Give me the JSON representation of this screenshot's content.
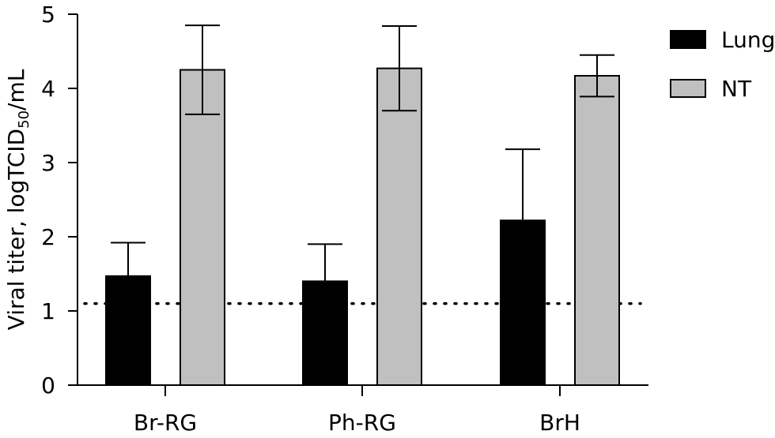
{
  "chart_data": {
    "type": "bar",
    "ylabel_main": "Viral titer, logTCID",
    "ylabel_sub": "50",
    "ylabel_end": "/mL",
    "ylim": [
      0,
      5
    ],
    "yticks": [
      "0",
      "1",
      "2",
      "3",
      "4",
      "5"
    ],
    "categories": [
      "Br-RG",
      "Ph-RG",
      "BrH"
    ],
    "series": [
      {
        "name": "Lung",
        "color": "#000000",
        "values": [
          1.47,
          1.4,
          2.22
        ],
        "error": [
          0.45,
          0.5,
          0.96
        ]
      },
      {
        "name": "NT",
        "color": "#c0c0c0",
        "values": [
          4.25,
          4.27,
          4.17
        ],
        "error": [
          0.6,
          0.57,
          0.28
        ]
      }
    ],
    "detection_limit": 1.1,
    "legend_position": "top-right",
    "grid": false
  }
}
